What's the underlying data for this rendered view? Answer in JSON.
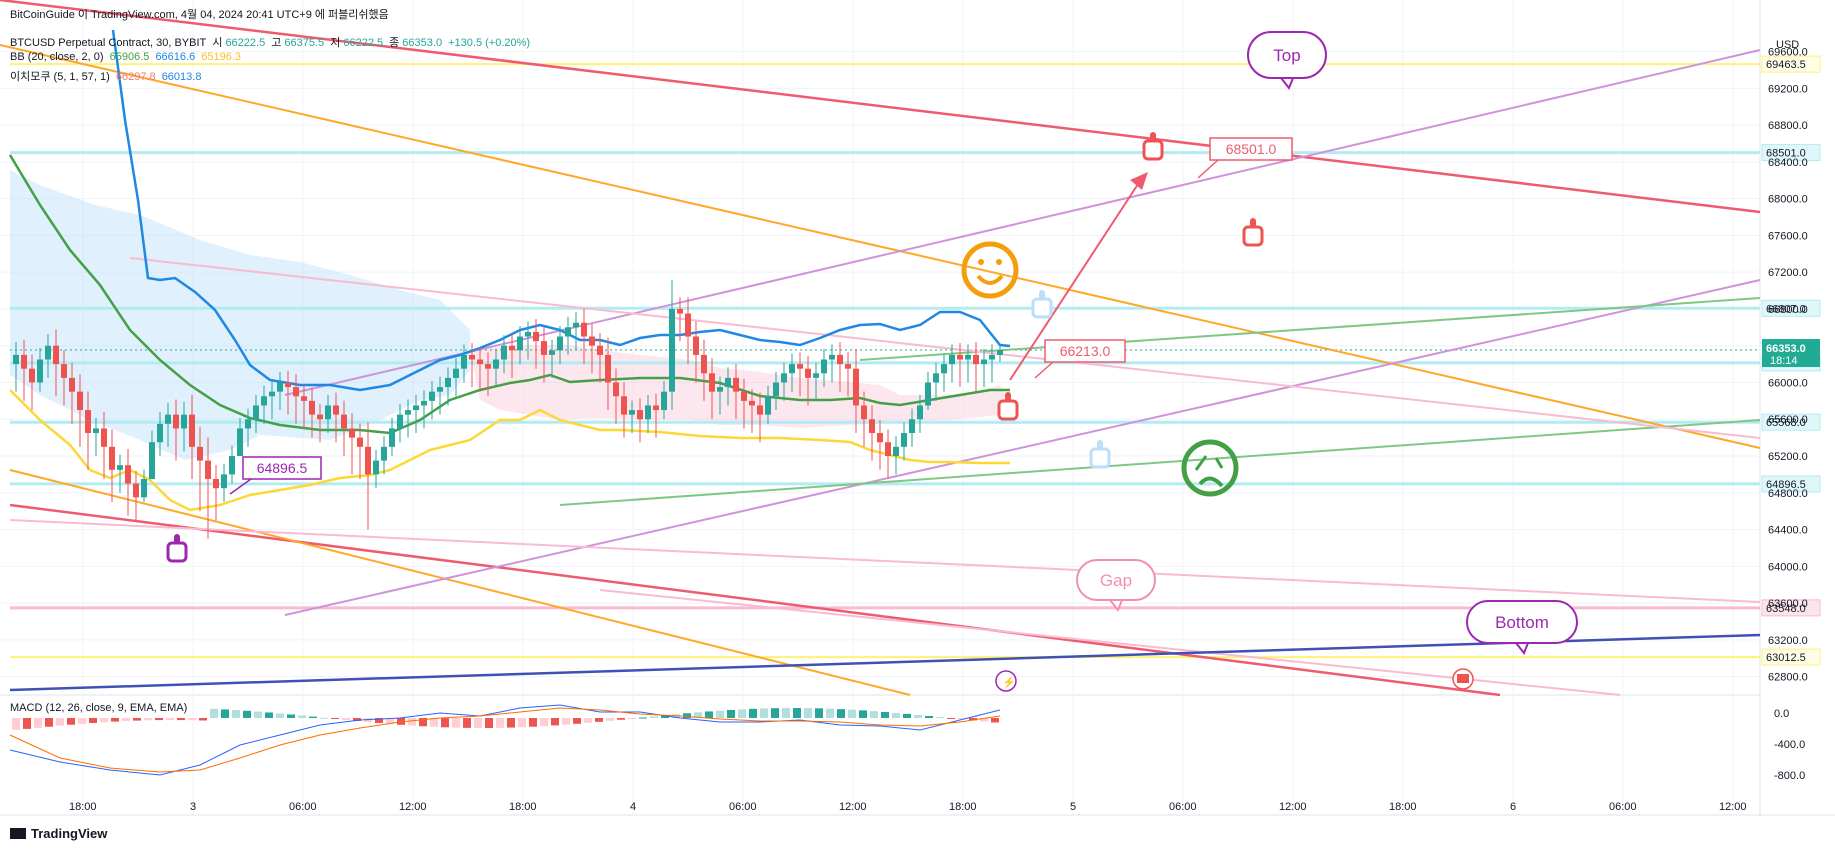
{
  "header": {
    "publisher_line": "BitCoinGuide 이 TradingView.com, 4월 04, 2024 20:41 UTC+9 에 퍼블리쉬했음",
    "symbol": "BTCUSD Perpetual Contract, 30, BYBIT",
    "ohlc": {
      "o_label": "시",
      "o": "66222.5",
      "h_label": "고",
      "h": "66375.5",
      "l_label": "저",
      "l": "66222.5",
      "c_label": "종",
      "c": "66353.0",
      "chg": "+130.5 (+0.20%)"
    },
    "bb": {
      "label": "BB (20, close, 2, 0)",
      "basis": "65906.5",
      "upper": "66616.6",
      "lower": "65196.3"
    },
    "ichimoku": {
      "label": "이치모쿠 (5, 1, 57, 1)",
      "v1": "66297.8",
      "v2": "66013.8"
    },
    "macd_label": "MACD (12, 26, close, 9, EMA, EMA)"
  },
  "currency": "USD",
  "brand": "TradingView",
  "colors": {
    "up": "#26a69a",
    "down": "#ef5350",
    "bb_basis": "#43a047",
    "bb_lower": "#fdd835",
    "ichimoku_line": "#1e88e5",
    "cloud": "#bbdefb",
    "red_line": "#ef5b6e",
    "orange_line": "#ffa726",
    "purple_line": "#ce93d8",
    "green_line": "#81c784",
    "pink_line": "#f8bbd0",
    "blue_line": "#3f51b5",
    "yellow_hline": "#fff176",
    "cyan_hline": "#b2ebf2",
    "pink_hline": "#f8bbd0"
  },
  "chart_data": {
    "type": "candlestick",
    "timeframe": "30",
    "ylim": [
      62600,
      69900
    ],
    "y_ticks": [
      62800,
      63200,
      63600,
      64000,
      64400,
      64800,
      65200,
      65600,
      66000,
      66400,
      66800,
      67200,
      67600,
      68000,
      68400,
      68800,
      69200,
      69600
    ],
    "x_ticks": [
      "18:00",
      "3",
      "06:00",
      "12:00",
      "18:00",
      "4",
      "06:00",
      "12:00",
      "18:00",
      "5",
      "06:00",
      "12:00",
      "18:00",
      "6",
      "06:00",
      "12:00"
    ],
    "horizontal_levels": [
      {
        "value": 69463.5,
        "label": "69463.5",
        "style": "yellow"
      },
      {
        "value": 68501.0,
        "label": "68501.0",
        "style": "cyan"
      },
      {
        "value": 66807.0,
        "label": "66807.0",
        "style": "cyan"
      },
      {
        "value": 66213.0,
        "label": "66213.0",
        "style": "cyan"
      },
      {
        "value": 65568.0,
        "label": "65568.0",
        "style": "cyan"
      },
      {
        "value": 64896.5,
        "label": "64896.5",
        "style": "cyan"
      },
      {
        "value": 63548.0,
        "label": "63548.0",
        "style": "pink"
      },
      {
        "value": 63012.5,
        "label": "63012.5",
        "style": "yellow"
      }
    ],
    "last_price": {
      "value": 66353.0,
      "label": "66353.0",
      "countdown": "18:14"
    },
    "candles_close": [
      66300,
      66150,
      66000,
      66250,
      66400,
      66200,
      66050,
      65900,
      65700,
      65450,
      65500,
      65300,
      65050,
      65100,
      64900,
      64750,
      64950,
      65350,
      65550,
      65650,
      65500,
      65650,
      65300,
      65150,
      64950,
      64850,
      65000,
      65200,
      65500,
      65600,
      65750,
      65850,
      65900,
      66000,
      65950,
      65850,
      65800,
      65650,
      65600,
      65750,
      65650,
      65500,
      65400,
      65300,
      65000,
      65150,
      65300,
      65500,
      65650,
      65700,
      65750,
      65800,
      65900,
      65950,
      66050,
      66150,
      66300,
      66250,
      66200,
      66150,
      66250,
      66400,
      66350,
      66500,
      66550,
      66450,
      66300,
      66350,
      66500,
      66600,
      66650,
      66500,
      66400,
      66300,
      66000,
      65850,
      65650,
      65700,
      65600,
      65750,
      65700,
      65900,
      66800,
      66750,
      66500,
      66300,
      66100,
      65900,
      65950,
      66050,
      65900,
      65800,
      65750,
      65650,
      65850,
      66000,
      66100,
      66200,
      66150,
      66050,
      66100,
      66250,
      66300,
      66200,
      66150,
      65750,
      65600,
      65450,
      65350,
      65200,
      65300,
      65450,
      65600,
      65750,
      66000,
      66100,
      66200,
      66300,
      66250,
      66300,
      66200,
      66250,
      66300,
      66353
    ],
    "candles_low": [
      65900,
      65800,
      65700,
      65900,
      66050,
      65850,
      65750,
      65550,
      65300,
      65050,
      65200,
      64950,
      64700,
      64800,
      64550,
      64500,
      64700,
      65000,
      65200,
      65300,
      65150,
      65250,
      64950,
      64600,
      64300,
      64500,
      64700,
      64900,
      65200,
      65300,
      65450,
      65550,
      65600,
      65700,
      65650,
      65550,
      65500,
      65400,
      65350,
      65450,
      65350,
      65200,
      65000,
      64950,
      64400,
      64850,
      65000,
      65200,
      65350,
      65400,
      65450,
      65500,
      65600,
      65650,
      65750,
      65850,
      66000,
      65950,
      65900,
      65850,
      65950,
      66100,
      66050,
      66200,
      66250,
      66150,
      66000,
      66050,
      66200,
      66300,
      66350,
      66200,
      66100,
      66000,
      65700,
      65550,
      65400,
      65450,
      65350,
      65450,
      65400,
      65600,
      65700,
      66450,
      66200,
      66000,
      65800,
      65600,
      65650,
      65750,
      65600,
      65500,
      65450,
      65350,
      65550,
      65700,
      65800,
      65900,
      65850,
      65750,
      65800,
      65950,
      66000,
      65900,
      65850,
      65450,
      65300,
      65150,
      65050,
      64950,
      65000,
      65150,
      65300,
      65450,
      65700,
      65800,
      65900,
      66000,
      65950,
      66000,
      65900,
      65950,
      66000,
      66222
    ]
  },
  "annotations": {
    "top": "Top",
    "gap": "Gap",
    "bottom": "Bottom",
    "callout_68501": "68501.0",
    "callout_66213": "66213.0",
    "callout_64896": "64896.5"
  },
  "macd_axis": [
    "0.0",
    "-400.0",
    "-800.0"
  ]
}
